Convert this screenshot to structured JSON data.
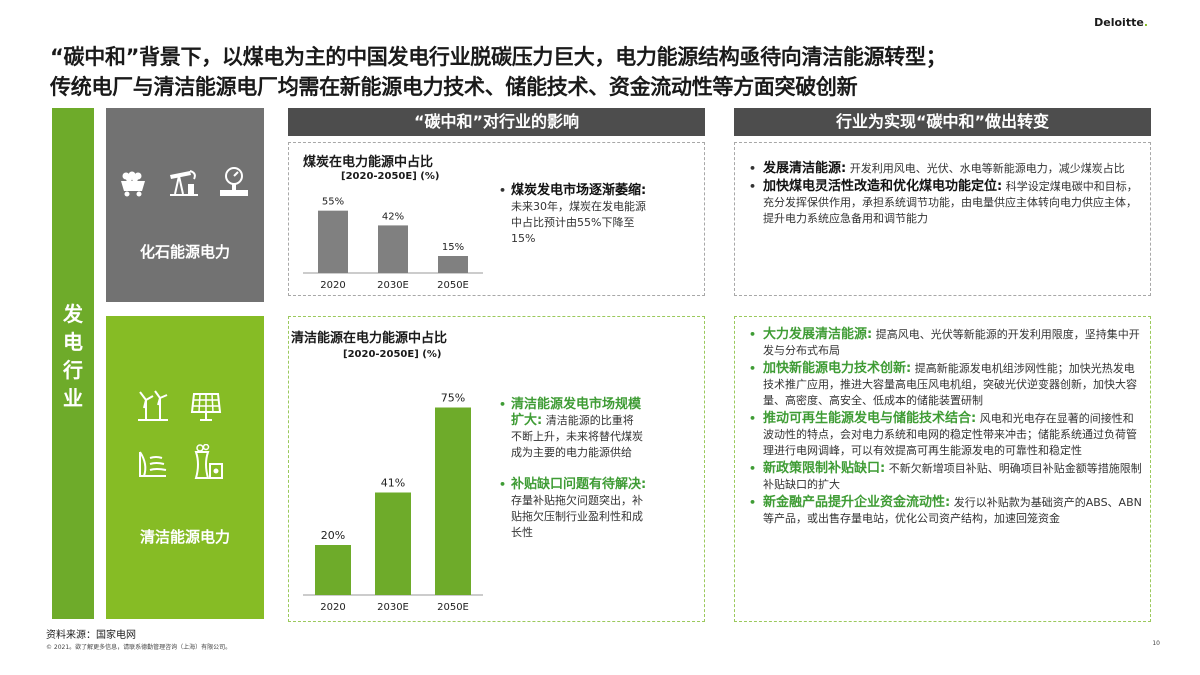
{
  "brand": {
    "name": "Deloitte",
    "dot": "."
  },
  "title": {
    "line1": "“碳中和”背景下，以煤电为主的中国发电行业脱碳压力巨大，电力能源结构亟待向清洁能源转型；",
    "line2": "传统电厂与清洁能源电厂均需在新能源电力技术、储能技术、资金流动性等方面突破创新"
  },
  "side_label": [
    "发",
    "电",
    "行",
    "业"
  ],
  "fossil": {
    "label": "化石能源电力",
    "icons": [
      "coal-cart-icon",
      "oil-pump-icon",
      "gas-meter-icon"
    ]
  },
  "clean": {
    "label": "清洁能源电力",
    "icons": [
      "wind-turbine-icon",
      "solar-panel-icon",
      "hydro-dam-icon",
      "nuclear-plant-icon"
    ]
  },
  "headers": {
    "impact": "“碳中和”对行业的影响",
    "change": "行业为实现“碳中和”做出转变"
  },
  "chart_data": [
    {
      "type": "bar",
      "title": "煤炭在电力能源中占比",
      "subtitle": "[2020-2050E] (%)",
      "categories": [
        "2020",
        "2030E",
        "2050E"
      ],
      "values": [
        55,
        42,
        15
      ],
      "labels": [
        "55%",
        "42%",
        "15%"
      ],
      "ylim": [
        0,
        60
      ],
      "color": "#808080"
    },
    {
      "type": "bar",
      "title": "清洁能源在电力能源中占比",
      "subtitle": "[2020-2050E] (%)",
      "categories": [
        "2020",
        "2030E",
        "2050E"
      ],
      "values": [
        20,
        41,
        75
      ],
      "labels": [
        "20%",
        "41%",
        "75%"
      ],
      "ylim": [
        0,
        80
      ],
      "color": "#6eab2a"
    }
  ],
  "impact_fossil": {
    "bullet": "•",
    "head": "煤炭发电市场逐渐萎缩:",
    "body": [
      "未来30年，煤炭在发电能源",
      "中占比预计由55%下降至",
      "15%"
    ]
  },
  "impact_clean": [
    {
      "bullet": "•",
      "head1": "清洁能源发电市场规模",
      "head2": "扩大:",
      "body": [
        "清洁能源的比重将",
        "不断上升，未来将替代煤炭",
        "成为主要的电力能源供给"
      ]
    },
    {
      "bullet": "•",
      "head1": "补贴缺口问题有待解决:",
      "head2": "",
      "body": [
        "存量补贴拖欠问题突出，补",
        "贴拖欠压制行业盈利性和成",
        "长性"
      ]
    }
  ],
  "change_fossil": [
    {
      "head": "发展清洁能源:",
      "body": " 开发利用风电、光伏、水电等新能源电力，减少煤炭占比"
    },
    {
      "head": "加快煤电灵活性改造和优化煤电功能定位:",
      "body": " 科学设定煤电碳中和目标，充分发挥保供作用，承担系统调节功能，由电量供应主体转向电力供应主体，提升电力系统应急备用和调节能力"
    }
  ],
  "change_clean": [
    {
      "head": "大力发展清洁能源:",
      "body": "  提高风电、光伏等新能源的开发利用限度，坚持集中开发与分布式布局"
    },
    {
      "head": "加快新能源电力技术创新:",
      "body": " 提高新能源发电机组涉网性能；加快光热发电技术推广应用，推进大容量高电压风电机组，突破光伏逆变器创新，加快大容量、高密度、高安全、低成本的储能装置研制"
    },
    {
      "head": "推动可再生能源发电与储能技术结合:",
      "body": " 风电和光电存在显著的间接性和波动性的特点，会对电力系统和电网的稳定性带来冲击；储能系统通过负荷管理进行电网调峰，可以有效提高可再生能源发电的可靠性和稳定性"
    },
    {
      "head": "新政策限制补贴缺口:",
      "body": " 不新欠新增项目补贴、明确项目补贴金额等措施限制补贴缺口的扩大"
    },
    {
      "head": "新金融产品提升企业资金流动性:",
      "body": " 发行以补贴款为基础资产的ABS、ABN等产品，或出售存量电站，优化公司资产结构，加速回笼资金"
    }
  ],
  "footer": {
    "source": "资料来源：国家电网",
    "copyright": "© 2021。欲了解更多信息，请联系德勤管理咨询（上海）有限公司。",
    "page": "10"
  }
}
